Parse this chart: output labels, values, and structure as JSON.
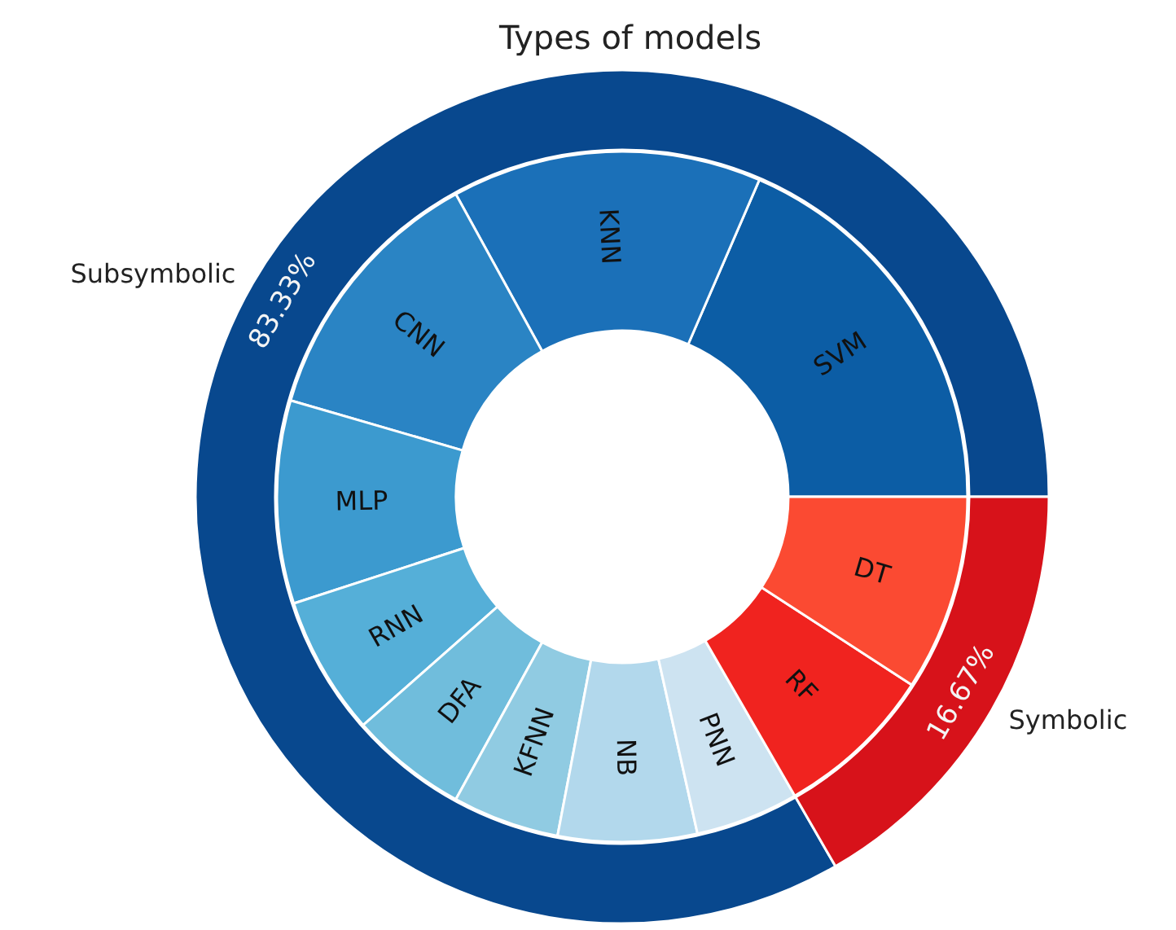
{
  "chart_data": [
    {
      "type": "donut",
      "title": "Types of models",
      "categories": [
        "Subsymbolic",
        "Symbolic"
      ],
      "values": [
        83.33,
        16.67
      ],
      "colors": [
        "#08488e",
        "#d7121a"
      ],
      "value_labels": [
        "83.33%",
        "16.67%"
      ]
    },
    {
      "type": "donut",
      "categories": [
        "SVM",
        "KNN",
        "CNN",
        "MLP",
        "RNN",
        "DFA",
        "KFNN",
        "NB",
        "PNN",
        "RF",
        "DT"
      ],
      "values": [
        18.5,
        14.5,
        12.5,
        9.5,
        6.5,
        5.5,
        5,
        6.5,
        4.83,
        7.5,
        9.17
      ],
      "colors": [
        "#0c5da5",
        "#1b70b8",
        "#2a84c4",
        "#3c9acf",
        "#55afd8",
        "#70bddc",
        "#90cbe2",
        "#b2d8ec",
        "#cde3f1",
        "#f0231f",
        "#fb4a32"
      ]
    }
  ]
}
